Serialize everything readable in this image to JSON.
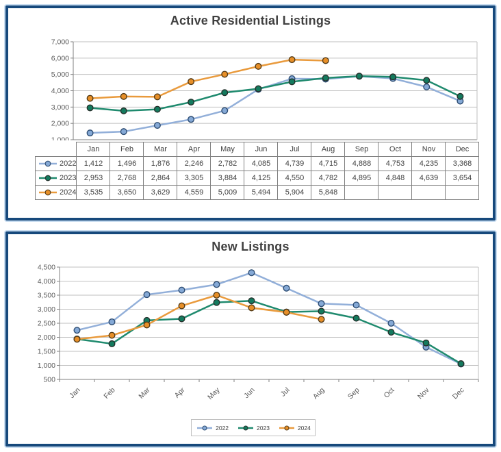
{
  "page": {
    "background": "#ffffff",
    "panel_border_color": "#17497c",
    "panel_glow_color": "#c9ddf0",
    "title_color": "#404040",
    "axis_label_color": "#595959",
    "gridline_color": "#bfbfbf",
    "axis_line_color": "#7f7f7f",
    "table_border_color": "#808080"
  },
  "chart_data": [
    {
      "type": "line",
      "title": "Active Residential Listings",
      "categories": [
        "Jan",
        "Feb",
        "Mar",
        "Apr",
        "May",
        "Jun",
        "Jul",
        "Aug",
        "Sep",
        "Oct",
        "Nov",
        "Dec"
      ],
      "series": [
        {
          "name": "2022",
          "line_color": "#92afd9",
          "marker_fill": "#85a9d6",
          "marker_edge": "#2e4d73",
          "values": [
            1412,
            1496,
            1876,
            2246,
            2782,
            4085,
            4739,
            4715,
            4888,
            4753,
            4235,
            3368
          ]
        },
        {
          "name": "2023",
          "line_color": "#1f8a6e",
          "marker_fill": "#147a5e",
          "marker_edge": "#26312c",
          "values": [
            2953,
            2768,
            2864,
            3305,
            3884,
            4125,
            4550,
            4782,
            4895,
            4848,
            4639,
            3654
          ]
        },
        {
          "name": "2024",
          "line_color": "#e99a3c",
          "marker_fill": "#e78f28",
          "marker_edge": "#543b17",
          "values": [
            3535,
            3650,
            3629,
            4559,
            5009,
            5494,
            5904,
            5848,
            null,
            null,
            null,
            null
          ]
        }
      ],
      "ylim": [
        1000,
        7000
      ],
      "ytick_step": 1000,
      "y_ticks": [
        "7,000",
        "6,000",
        "5,000",
        "4,000",
        "3,000",
        "2,000",
        "1,000"
      ],
      "grid": true,
      "legend_position": "data-table-left",
      "data_table": true
    },
    {
      "type": "line",
      "title": "New Listings",
      "categories": [
        "Jan",
        "Feb",
        "Mar",
        "Apr",
        "May",
        "Jun",
        "Jul",
        "Aug",
        "Sep",
        "Oct",
        "Nov",
        "Dec"
      ],
      "series": [
        {
          "name": "2022",
          "line_color": "#92afd9",
          "marker_fill": "#85a9d6",
          "marker_edge": "#2e4d73",
          "values": [
            2250,
            2550,
            3520,
            3680,
            3880,
            4300,
            3750,
            3200,
            3150,
            2500,
            1650,
            1050
          ]
        },
        {
          "name": "2023",
          "line_color": "#1f8a6e",
          "marker_fill": "#147a5e",
          "marker_edge": "#26312c",
          "values": [
            1940,
            1770,
            2600,
            2660,
            3240,
            3300,
            2900,
            2930,
            2680,
            2180,
            1800,
            1060
          ]
        },
        {
          "name": "2024",
          "line_color": "#e99a3c",
          "marker_fill": "#e78f28",
          "marker_edge": "#543b17",
          "values": [
            1930,
            2070,
            2440,
            3120,
            3500,
            3050,
            2890,
            2640,
            null,
            null,
            null,
            null
          ]
        }
      ],
      "ylim": [
        500,
        4500
      ],
      "ytick_step": 500,
      "y_ticks": [
        "4,500",
        "4,000",
        "3,500",
        "3,000",
        "2,500",
        "2,000",
        "1,500",
        "1,000",
        "500"
      ],
      "grid": true,
      "legend_position": "bottom",
      "data_table": false
    }
  ]
}
